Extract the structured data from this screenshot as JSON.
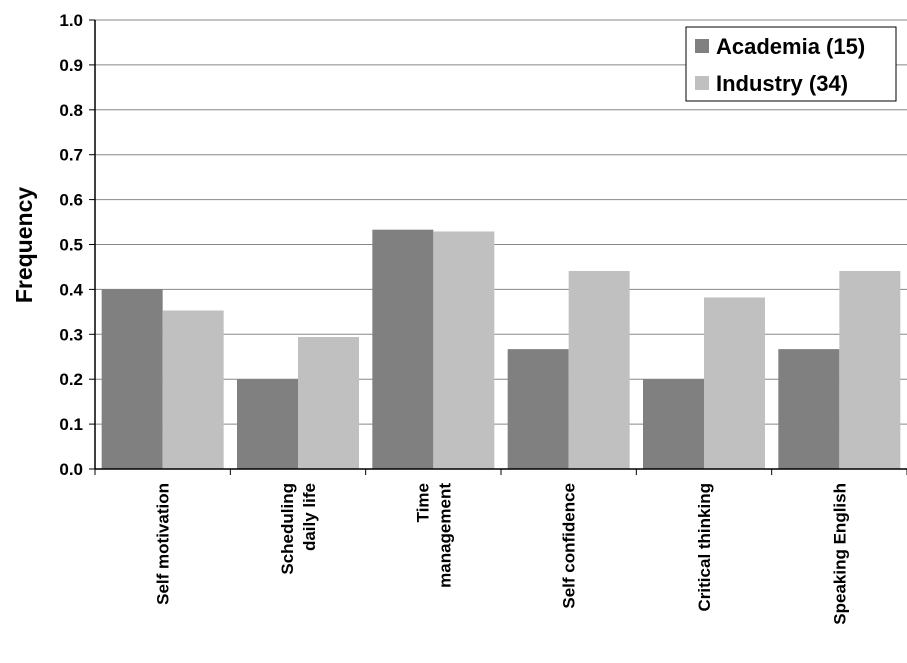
{
  "chart_data": {
    "type": "bar",
    "title": "",
    "xlabel": "",
    "ylabel": "Frequency",
    "ylim": [
      0,
      1.0
    ],
    "yticks": [
      "0.0",
      "0.1",
      "0.2",
      "0.3",
      "0.4",
      "0.5",
      "0.6",
      "0.7",
      "0.8",
      "0.9",
      "1.0"
    ],
    "grid": true,
    "legend_position": "top-right",
    "categories": [
      [
        "Self motivation"
      ],
      [
        "Scheduling",
        "daily life"
      ],
      [
        "Time",
        "management"
      ],
      [
        "Self confidence"
      ],
      [
        "Critical thinking"
      ],
      [
        "Speaking English"
      ]
    ],
    "series": [
      {
        "name": "Academia (15)",
        "color": "#808080",
        "values": [
          0.4,
          0.2,
          0.533,
          0.267,
          0.2,
          0.267
        ]
      },
      {
        "name": "Industry (34)",
        "color": "#c0c0c0",
        "values": [
          0.353,
          0.294,
          0.529,
          0.441,
          0.382,
          0.441
        ]
      }
    ]
  }
}
